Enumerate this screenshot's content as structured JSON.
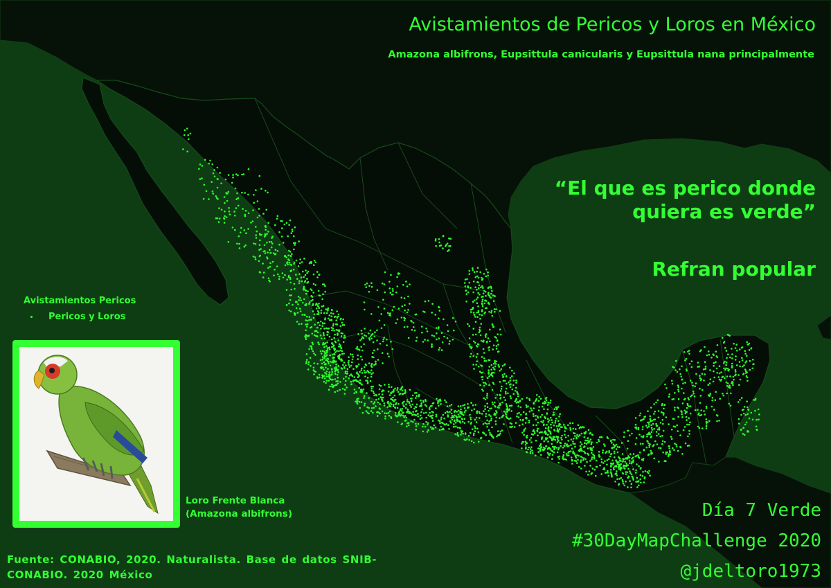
{
  "title": "Avistamientos de Pericos y Loros en México",
  "subtitle": "Amazona albifrons, Eupsittula canicularis y Eupsittula nana principalmente",
  "quote": {
    "line1": "“El que es perico donde",
    "line2": "quiera es verde”",
    "source": "Refran popular"
  },
  "legend": {
    "title": "Avistamientos Pericos",
    "item_label": "Pericos y Loros"
  },
  "photo": {
    "caption_line1": "Loro Frente Blanca",
    "caption_line2": "(Amazona albifrons)"
  },
  "source_note": {
    "line1": "Fuente: CONABIO, 2020. Naturalista. Base de datos SNIB-",
    "line2": "CONABIO. 2020 México"
  },
  "credits": {
    "day": "Día 7 Verde",
    "challenge": "#30DayMapChallenge 2020",
    "author": "@jdeltoro1973"
  },
  "colors": {
    "sea": "#0e3d14",
    "land": "#050f06",
    "accent": "#33ff33",
    "points": "#2dff2d"
  }
}
